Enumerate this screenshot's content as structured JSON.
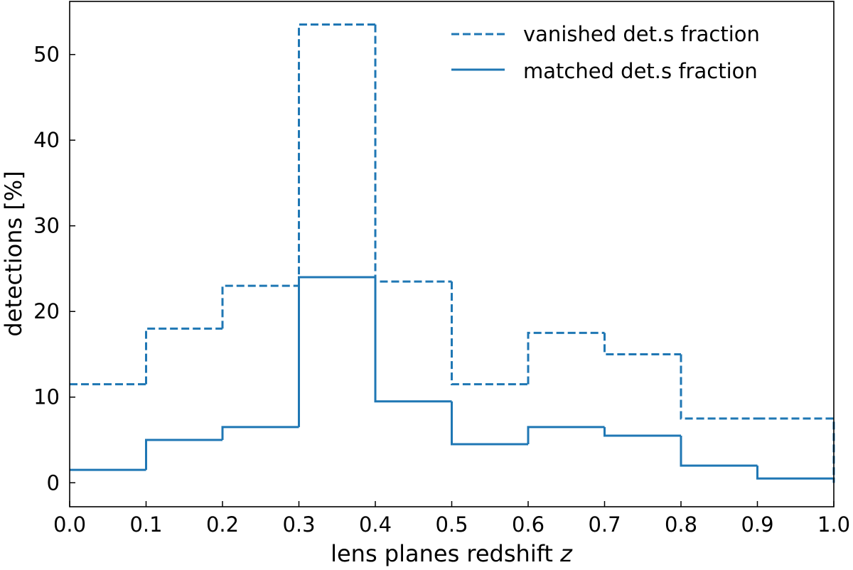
{
  "chart_data": {
    "type": "step",
    "bin_edges": [
      0.0,
      0.1,
      0.2,
      0.3,
      0.4,
      0.5,
      0.6,
      0.7,
      0.8,
      0.9,
      1.0
    ],
    "series": [
      {
        "name": "vanished det.s fraction",
        "style": "dashed",
        "color": "#1f77b4",
        "values": [
          11.5,
          18.0,
          23.0,
          53.5,
          23.5,
          11.5,
          17.5,
          15.0,
          7.5,
          7.5
        ]
      },
      {
        "name": "matched det.s fraction",
        "style": "solid",
        "color": "#1f77b4",
        "values": [
          1.5,
          5.0,
          6.5,
          24.0,
          9.5,
          4.5,
          6.5,
          5.5,
          2.0,
          0.5
        ]
      }
    ],
    "xlabel": "lens planes redshift",
    "xlabel_var": "z",
    "ylabel": "detections [%]",
    "xlim": [
      0.0,
      1.0
    ],
    "ylim": [
      -2.8,
      56.2
    ],
    "xticks": [
      "0.0",
      "0.1",
      "0.2",
      "0.3",
      "0.4",
      "0.5",
      "0.6",
      "0.7",
      "0.8",
      "0.9",
      "1.0"
    ],
    "yticks": [
      "0",
      "10",
      "20",
      "30",
      "40",
      "50"
    ],
    "legend": "top-right",
    "grid": false
  }
}
